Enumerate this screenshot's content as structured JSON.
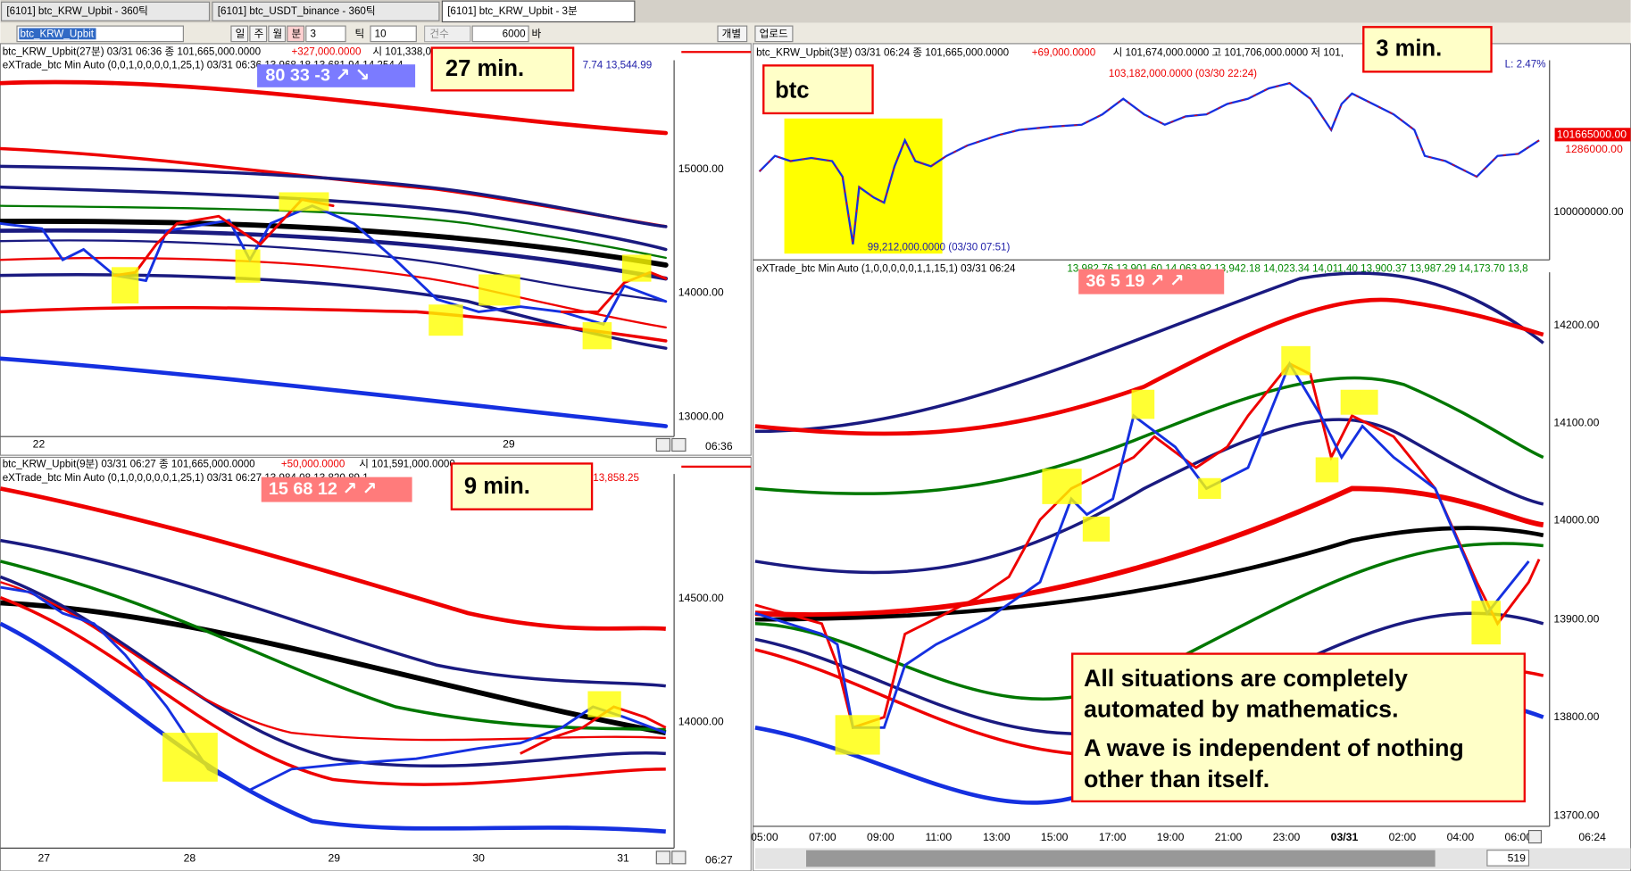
{
  "tabs": [
    "[6101] btc_KRW_Upbit - 360틱",
    "[6101] btc_USDT_binance - 360틱",
    "[6101] btc_KRW_Upbit - 3분"
  ],
  "toolbar": {
    "symbol": "btc_KRW_Upbit",
    "buttons": [
      "일",
      "주",
      "월",
      "분"
    ],
    "interval": "3",
    "tick_label": "틱",
    "tick_value": "10",
    "count_label": "건수",
    "count_value": "6000",
    "bar_label": "바",
    "individual": "개별",
    "upload": "업로드"
  },
  "panels": [
    {
      "header": "btc_KRW_Upbit(27분) 03/31 06:36  종 101,665,000.0000",
      "change": "+327,000.0000",
      "header_rest": "시 101,338,0",
      "indicator": "eXTrade_btc Min Auto  (0,0,1,0,0,0,0,1,25,1) 03/31 06:36 13,968.18 13,681.94 14,254.4",
      "indicator_tail": "7.74 13,544.99",
      "badge": "80  33  -3  ↗ ↘",
      "callout": "27 min.",
      "yticks": [
        "15000.00",
        "14000.00",
        "13000.00"
      ],
      "xticks": [
        "22",
        "29"
      ],
      "time": "06:36"
    },
    {
      "header": "btc_KRW_Upbit(9분) 03/31 06:27  종 101,665,000.0000",
      "change": "+50,000.0000",
      "header_rest": "시 101,591,000.0000",
      "indicator": "eXTrade_btc Min Auto  (0,1,0,0,0,0,0,1,25,1) 03/31 06:27 13,984.08 13,820.89 1",
      "indicator_tail": "13,858.25",
      "badge": "15  68  12  ↗ ↗",
      "callout": "9 min.",
      "yticks": [
        "14500.00",
        "14000.00"
      ],
      "xticks": [
        "27",
        "28",
        "29",
        "30",
        "31"
      ],
      "time": "06:27"
    },
    {
      "header": "btc_KRW_Upbit(3분) 03/31 06:24  종 101,665,000.0000",
      "change": "+69,000.0000",
      "header_rest": "시 101,674,000.0000  고 101,706,000.0000  저 101,",
      "high_label": "103,182,000.0000 (03/30 22:24)",
      "low_label": "99,212,000.0000 (03/30 07:51)",
      "range_label": "L: 2.47%",
      "callout_btc": "btc",
      "callout": "3 min.",
      "price_last": "101665000.00",
      "price_change": "1286000.00",
      "price_ticks": [
        "100000000.00"
      ],
      "indicator": "eXTrade_btc Min Auto  (1,0,0,0,0,0,1,1,15,1) 03/31 06:24",
      "indicator_values": "13,982.76 13,901.60 14,063.92 13,942.18 14,023.34 14,011.40 13,900.37 13,987.29 14,173.70 13,8",
      "badge": "36  5  19  ↗ ↗",
      "yticks": [
        "14200.00",
        "14100.00",
        "14000.00",
        "13900.00",
        "13800.00",
        "13700.00"
      ],
      "xticks": [
        "05:00",
        "07:00",
        "09:00",
        "11:00",
        "13:00",
        "15:00",
        "17:00",
        "19:00",
        "21:00",
        "23:00",
        "03/31",
        "02:00",
        "04:00",
        "06:00"
      ],
      "time": "06:24",
      "note": [
        "All situations are completely",
        "automated by mathematics.",
        "A wave is independent of nothing",
        "other than itself."
      ],
      "scroll_count": "519"
    }
  ]
}
